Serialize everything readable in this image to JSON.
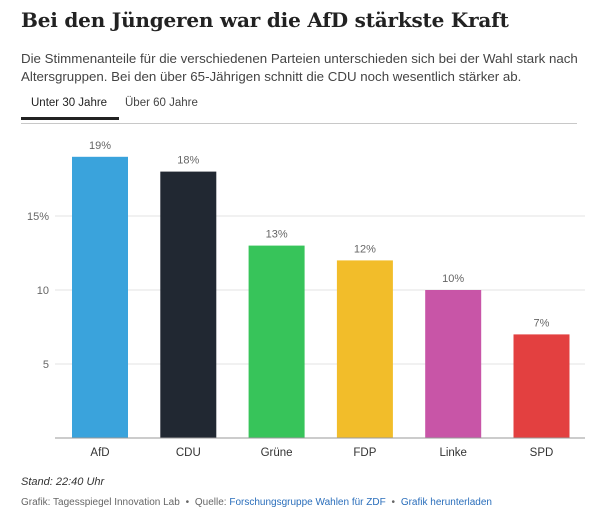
{
  "header": {
    "title": "Bei den Jüngeren war die AfD stärkste Kraft",
    "subtitle": "Die Stimmenanteile für die verschiedenen Parteien unterschieden sich bei der Wahl stark nach Altersgruppen. Bei den über 65-Jährigen schnitt die CDU noch wesentlich stärker ab."
  },
  "tabs": [
    {
      "label": "Unter 30 Jahre",
      "active": true
    },
    {
      "label": "Über 60 Jahre",
      "active": false
    }
  ],
  "chart_data": {
    "type": "bar",
    "categories": [
      "AfD",
      "CDU",
      "Grüne",
      "FDP",
      "Linke",
      "SPD"
    ],
    "values": [
      19,
      18,
      13,
      12,
      10,
      7
    ],
    "value_labels": [
      "19%",
      "18%",
      "13%",
      "12%",
      "10%",
      "7%"
    ],
    "colors": [
      "#3aa3dc",
      "#212832",
      "#37c45a",
      "#f2bd2a",
      "#c855a7",
      "#e34040"
    ],
    "yticks": [
      5,
      10,
      15
    ],
    "ytick_labels": [
      "5",
      "10",
      "15%"
    ],
    "ylim": [
      0,
      20
    ],
    "grid": true,
    "title": "",
    "xlabel": "",
    "ylabel": ""
  },
  "meta": {
    "stand": "Stand: 22:40 Uhr",
    "credit": "Grafik: Tagesspiegel Innovation Lab",
    "sep": "•",
    "source_label": "Quelle:",
    "source_link": "Forschungsgruppe Wahlen für ZDF",
    "download": "Grafik herunterladen"
  }
}
